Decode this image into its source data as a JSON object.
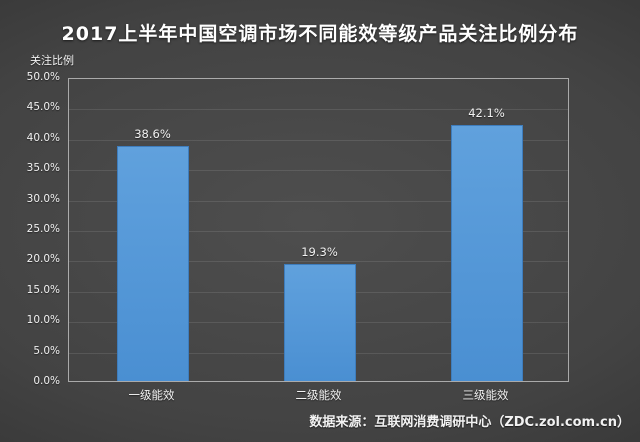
{
  "page": {
    "title": "2017上半年中国空调市场不同能效等级产品关注比例分布",
    "y_axis_title": "关注比例",
    "source_note": "数据来源：互联网消费调研中心（ZDC.zol.com.cn）"
  },
  "colors": {
    "background_center": "#4e4e4e",
    "background_edge": "#212121",
    "bar_top": "#60a1dd",
    "bar_bottom": "#4a8fd2",
    "bar_border": "#3e7dbd",
    "grid_line": "rgba(255,255,255,0.10)",
    "plot_border": "rgba(255,255,255,0.55)",
    "text": "#f2f2f2",
    "title_text": "#ffffff"
  },
  "chart_data": {
    "type": "bar",
    "title": "2017上半年中国空调市场不同能效等级产品关注比例分布",
    "categories": [
      "一级能效",
      "二级能效",
      "三级能效"
    ],
    "values": [
      38.6,
      19.3,
      42.1
    ],
    "value_labels": [
      "38.6%",
      "19.3%",
      "42.1%"
    ],
    "xlabel": "",
    "ylabel": "关注比例",
    "ylim": [
      0,
      50
    ],
    "ytick_step": 5,
    "ytick_labels": [
      "0.0%",
      "5.0%",
      "10.0%",
      "15.0%",
      "20.0%",
      "25.0%",
      "30.0%",
      "35.0%",
      "40.0%",
      "45.0%",
      "50.0%"
    ],
    "grid": true,
    "legend": false,
    "bar_color": "#5597d9"
  }
}
